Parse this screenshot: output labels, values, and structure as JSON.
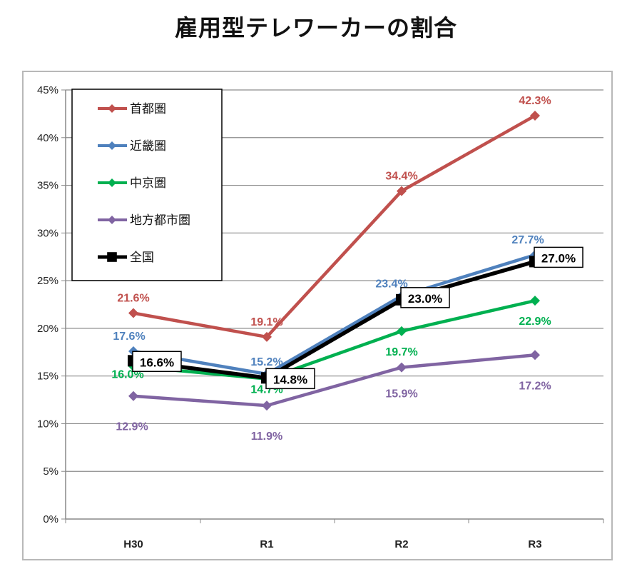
{
  "chart_data": {
    "type": "line",
    "title": "雇用型テレワーカーの割合",
    "categories": [
      "H30",
      "R1",
      "R2",
      "R3"
    ],
    "ylim": [
      0,
      45
    ],
    "yticks": [
      "0%",
      "5%",
      "10%",
      "15%",
      "20%",
      "25%",
      "30%",
      "35%",
      "40%",
      "45%"
    ],
    "grid": true,
    "legend_position": "top-left",
    "series": [
      {
        "name": "首都圏",
        "color": "#c0504d",
        "marker": "diamond",
        "values": [
          21.6,
          19.1,
          34.4,
          42.3
        ],
        "labels": [
          "21.6%",
          "19.1%",
          "34.4%",
          "42.3%"
        ]
      },
      {
        "name": "近畿圏",
        "color": "#4f81bd",
        "marker": "diamond",
        "values": [
          17.6,
          15.2,
          23.4,
          27.7
        ],
        "labels": [
          "17.6%",
          "15.2%",
          "23.4%",
          "27.7%"
        ]
      },
      {
        "name": "中京圏",
        "color": "#00b050",
        "marker": "diamond",
        "values": [
          16.0,
          14.7,
          19.7,
          22.9
        ],
        "labels": [
          "16.0%",
          "14.7%",
          "19.7%",
          "22.9%"
        ]
      },
      {
        "name": "地方都市圏",
        "color": "#8064a2",
        "marker": "diamond",
        "values": [
          12.9,
          11.9,
          15.9,
          17.2
        ],
        "labels": [
          "12.9%",
          "11.9%",
          "15.9%",
          "17.2%"
        ]
      },
      {
        "name": "全国",
        "color": "#000000",
        "marker": "square",
        "values": [
          16.6,
          14.8,
          23.0,
          27.0
        ],
        "labels": [
          "16.6%",
          "14.8%",
          "23.0%",
          "27.0%"
        ],
        "boxed": true
      }
    ]
  }
}
